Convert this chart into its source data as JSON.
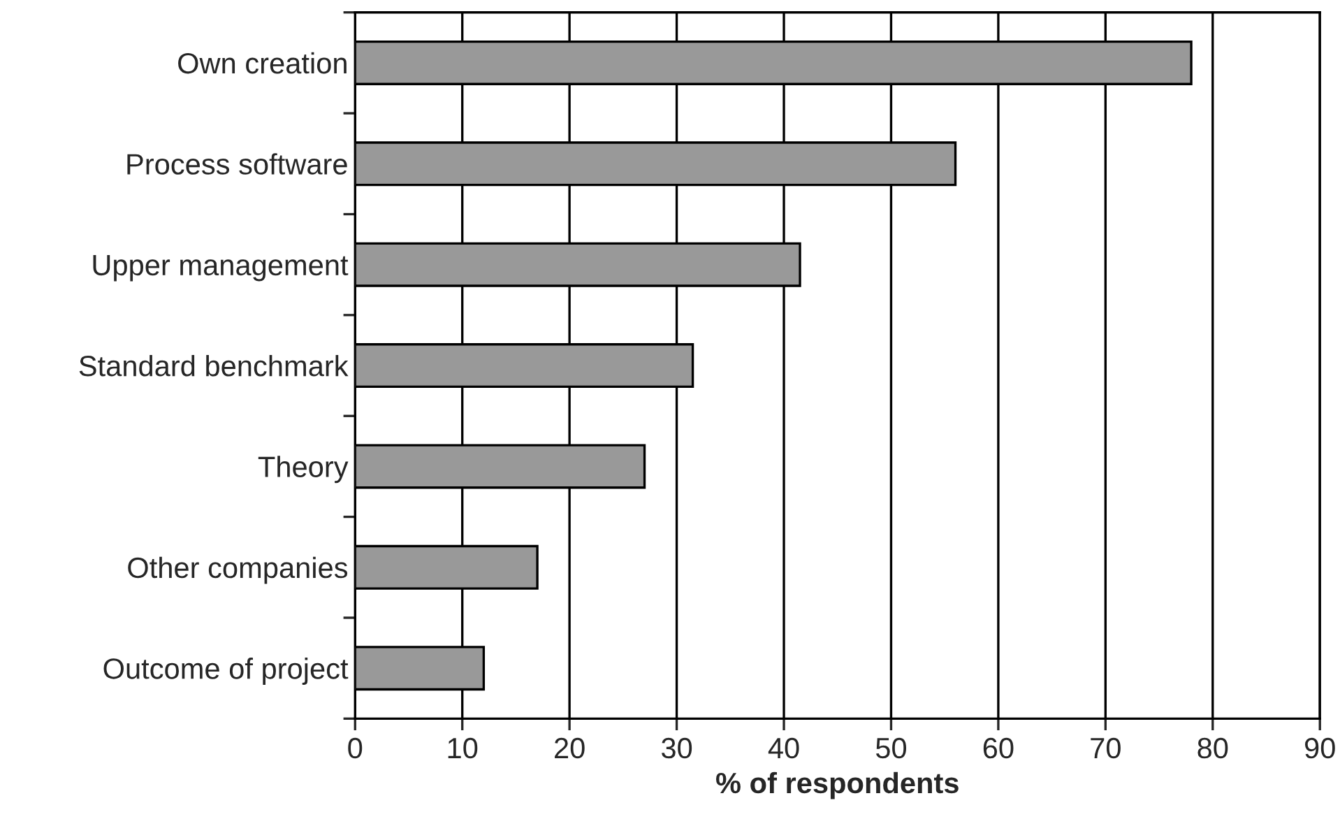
{
  "chart_data": {
    "type": "bar",
    "orientation": "horizontal",
    "xlabel": "% of respondents",
    "categories": [
      "Own creation",
      "Process software",
      "Upper management",
      "Standard benchmark",
      "Theory",
      "Other companies",
      "Outcome of project"
    ],
    "values": [
      78,
      56,
      41.5,
      31.5,
      27,
      17,
      12
    ],
    "color": "#999999",
    "xlim": [
      0,
      90
    ],
    "xticks": [
      0,
      10,
      20,
      30,
      40,
      50,
      60,
      70,
      80,
      90
    ],
    "grid": "x"
  }
}
